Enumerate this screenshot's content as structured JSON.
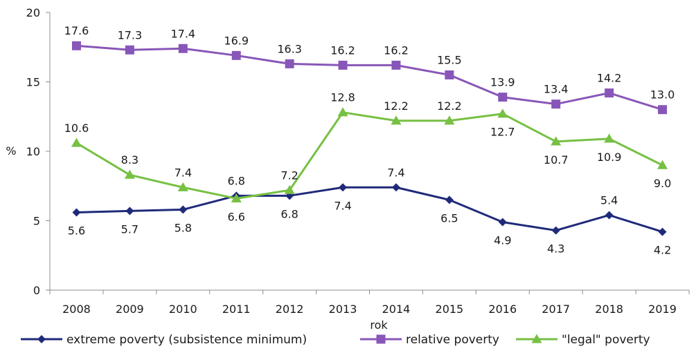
{
  "chart_data": {
    "type": "line",
    "title": "",
    "xlabel": "rok",
    "ylabel": "%",
    "categories": [
      "2008",
      "2009",
      "2010",
      "2011",
      "2012",
      "2013",
      "2014",
      "2015",
      "2016",
      "2017",
      "2018",
      "2019"
    ],
    "ylim": [
      0,
      20
    ],
    "yticks": [
      "0",
      "5",
      "10",
      "15",
      "20"
    ],
    "grid": false,
    "legend_position": "bottom",
    "series": [
      {
        "name": "extreme poverty (subsistence minimum)",
        "color": "#1f2a7a",
        "marker": "diamond",
        "values": [
          5.6,
          5.7,
          5.8,
          6.8,
          6.8,
          7.4,
          7.4,
          6.5,
          4.9,
          4.3,
          5.4,
          4.2
        ],
        "labels": [
          "5.6",
          "5.7",
          "5.8",
          "6.8",
          "6.8",
          "7.4",
          "7.4",
          "6.5",
          "4.9",
          "4.3",
          "5.4",
          "4.2"
        ]
      },
      {
        "name": "relative poverty",
        "color": "#8856b8",
        "marker": "square",
        "values": [
          17.6,
          17.3,
          17.4,
          16.9,
          16.3,
          16.2,
          16.2,
          15.5,
          13.9,
          13.4,
          14.2,
          13.0
        ],
        "labels": [
          "17.6",
          "17.3",
          "17.4",
          "16.9",
          "16.3",
          "16.2",
          "16.2",
          "15.5",
          "13.9",
          "13.4",
          "14.2",
          "13.0"
        ]
      },
      {
        "name": "\"legal\" poverty",
        "color": "#76c043",
        "marker": "triangle",
        "values": [
          10.6,
          8.3,
          7.4,
          6.6,
          7.2,
          12.8,
          12.2,
          12.2,
          12.7,
          10.7,
          10.9,
          9.0
        ],
        "labels": [
          "10.6",
          "8.3",
          "7.4",
          "6.6",
          "7.2",
          "12.8",
          "12.2",
          "12.2",
          "12.7",
          "10.7",
          "10.9",
          "9.0"
        ]
      }
    ]
  }
}
